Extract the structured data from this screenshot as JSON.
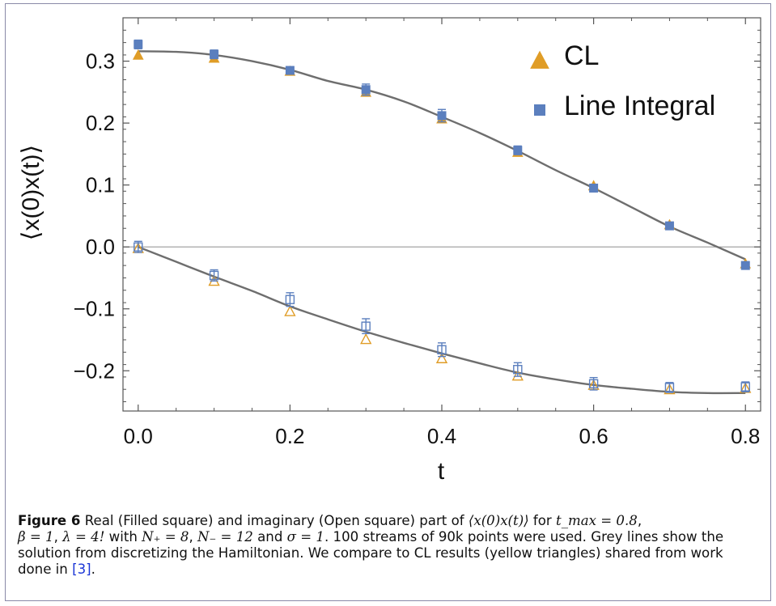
{
  "chart_data": {
    "type": "scatter",
    "xlabel": "t",
    "ylabel": "⟨x(0)x(t)⟩",
    "xlim": [
      -0.02,
      0.82
    ],
    "ylim": [
      -0.265,
      0.37
    ],
    "xticks": [
      0.0,
      0.2,
      0.4,
      0.6,
      0.8
    ],
    "xtick_labels": [
      "0.0",
      "0.2",
      "0.4",
      "0.6",
      "0.8"
    ],
    "yticks": [
      -0.2,
      -0.1,
      0.0,
      0.1,
      0.2,
      0.3
    ],
    "ytick_labels": [
      "−0.2",
      "−0.1",
      "0.0",
      "0.1",
      "0.2",
      "0.3"
    ],
    "grid": false,
    "legend_position": "top-right",
    "x": [
      0.0,
      0.1,
      0.2,
      0.3,
      0.4,
      0.5,
      0.6,
      0.7,
      0.8
    ],
    "series": [
      {
        "name": "CL",
        "part": "real",
        "marker": "triangle",
        "filled": true,
        "color": "#e09d27",
        "values": [
          0.309,
          0.304,
          0.283,
          0.249,
          0.206,
          0.152,
          0.098,
          0.035,
          -0.028
        ]
      },
      {
        "name": "Line Integral",
        "part": "real",
        "marker": "square",
        "filled": true,
        "color": "#5b7fbe",
        "values": [
          0.327,
          0.311,
          0.285,
          0.254,
          0.212,
          0.156,
          0.095,
          0.034,
          -0.03
        ],
        "errors": [
          0.007,
          0.007,
          0.006,
          0.009,
          0.01,
          0.007,
          0.006,
          0.006,
          0.006
        ]
      },
      {
        "name": "CL",
        "part": "imaginary",
        "marker": "triangle",
        "filled": false,
        "color": "#e09d27",
        "values": [
          -0.003,
          -0.056,
          -0.105,
          -0.15,
          -0.181,
          -0.209,
          -0.224,
          -0.231,
          -0.229
        ]
      },
      {
        "name": "Line Integral",
        "part": "imaginary",
        "marker": "square",
        "filled": false,
        "color": "#5b7fbe",
        "values": [
          0.0,
          -0.046,
          -0.085,
          -0.128,
          -0.166,
          -0.198,
          -0.221,
          -0.227,
          -0.226
        ],
        "errors": [
          0.009,
          0.009,
          0.011,
          0.012,
          0.011,
          0.011,
          0.01,
          0.008,
          0.008
        ]
      }
    ],
    "curves": [
      {
        "color": "#6e6e6e",
        "x": [
          0.0,
          0.05,
          0.1,
          0.15,
          0.2,
          0.25,
          0.3,
          0.35,
          0.4,
          0.45,
          0.5,
          0.55,
          0.6,
          0.65,
          0.7,
          0.75,
          0.8
        ],
        "values": [
          0.316,
          0.315,
          0.31,
          0.3,
          0.286,
          0.268,
          0.254,
          0.235,
          0.21,
          0.184,
          0.155,
          0.124,
          0.095,
          0.064,
          0.033,
          0.007,
          -0.02
        ]
      },
      {
        "color": "#6e6e6e",
        "x": [
          0.0,
          0.05,
          0.1,
          0.15,
          0.2,
          0.25,
          0.3,
          0.35,
          0.4,
          0.45,
          0.5,
          0.55,
          0.6,
          0.65,
          0.7,
          0.75,
          0.8
        ],
        "values": [
          0.0,
          -0.024,
          -0.048,
          -0.071,
          -0.096,
          -0.117,
          -0.137,
          -0.155,
          -0.172,
          -0.188,
          -0.203,
          -0.214,
          -0.223,
          -0.229,
          -0.234,
          -0.236,
          -0.236
        ]
      }
    ]
  },
  "legend": [
    {
      "label": "CL",
      "marker": "triangle",
      "color": "#e09d27"
    },
    {
      "label": "Line Integral",
      "marker": "square",
      "color": "#5b7fbe"
    }
  ],
  "caption": {
    "lead": "Figure 6",
    "text1": " Real (Filled square) and imaginary (Open square) part of ",
    "m1": "⟨x(0)x(t)⟩",
    "text2": " for ",
    "m2": "t_max = 0.8",
    "text3": ",",
    "m3": "β = 1",
    "text4": ", ",
    "m4": "λ = 4!",
    "text5": " with ",
    "m5": "N₊ = 8",
    "text6": ", ",
    "m6": "N₋ = 12",
    "text7": " and ",
    "m7": "σ = 1",
    "text8": ". 100 streams of 90k points were used. Grey lines show the solution from discretizing the Hamiltonian. We compare to CL results (yellow triangles) shared from work done in ",
    "ref": "[3]",
    "text9": "."
  }
}
